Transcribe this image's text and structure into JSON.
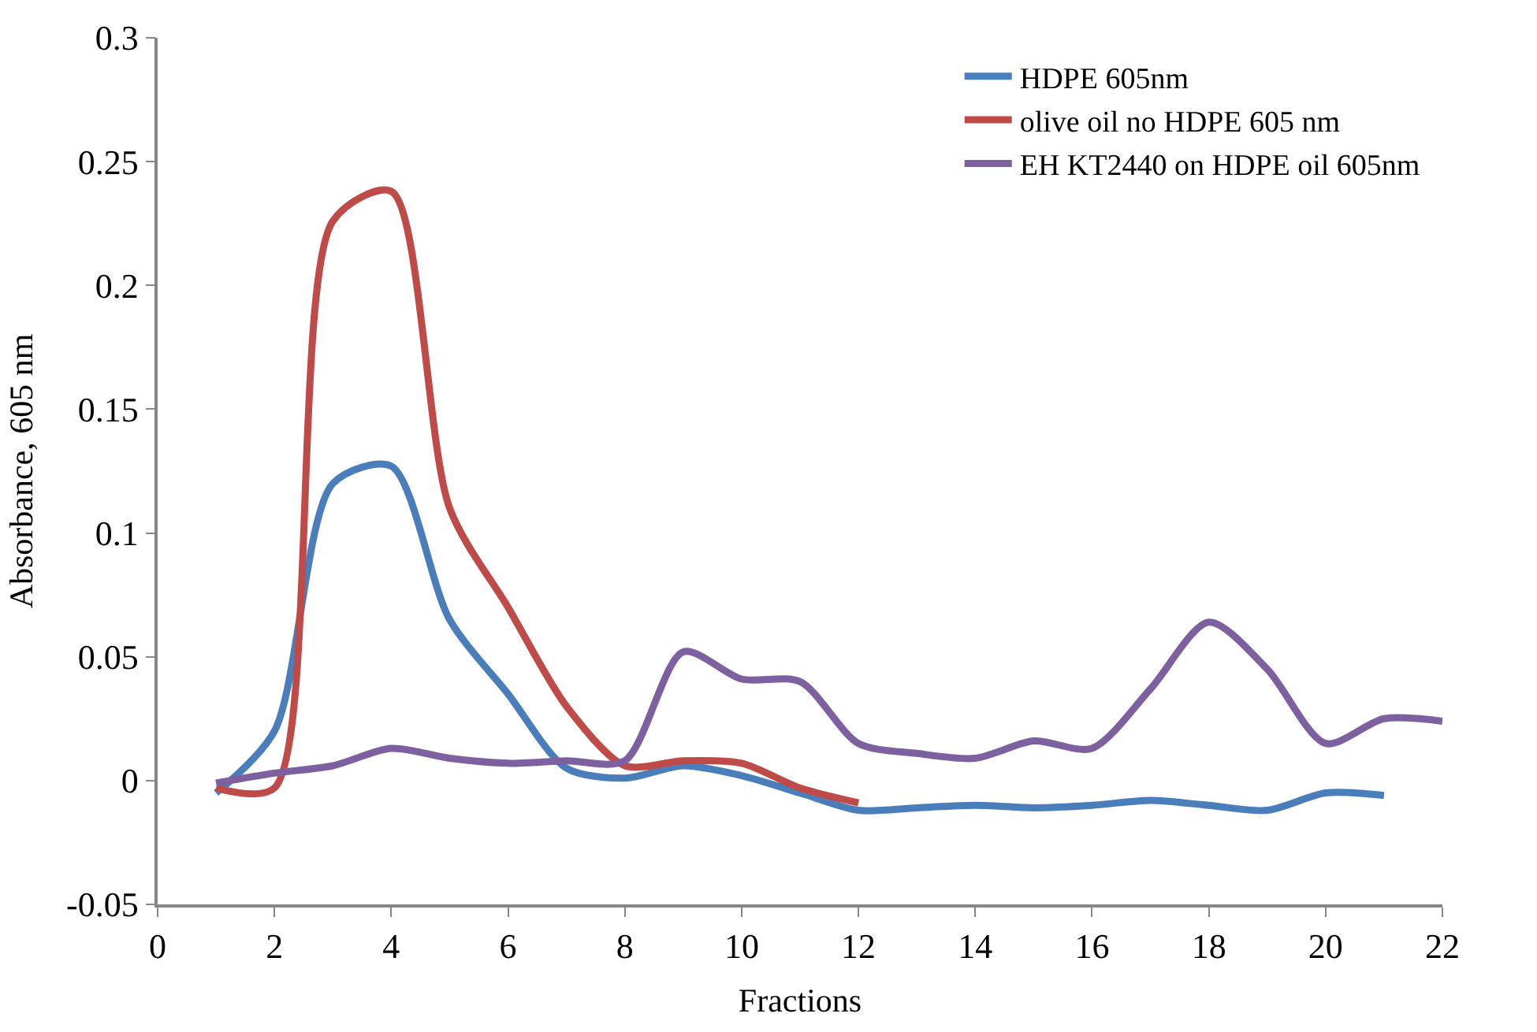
{
  "chart_data": {
    "type": "line",
    "xlabel": "Fractions",
    "ylabel": "Absorbance, 605 nm",
    "xlim": [
      0,
      22
    ],
    "xticks": [
      0,
      2,
      4,
      6,
      8,
      10,
      12,
      14,
      16,
      18,
      20,
      22
    ],
    "ylim": [
      -0.05,
      0.3
    ],
    "yticks": [
      -0.05,
      0,
      0.05,
      0.1,
      0.15,
      0.2,
      0.25,
      0.3
    ],
    "legend": "top right",
    "marker": "none",
    "line_style": "solid",
    "series": [
      {
        "name": "HDPE 605nm",
        "color": "#4a7ebb",
        "x": [
          1,
          2,
          3,
          4,
          5,
          6,
          7,
          8,
          9,
          10,
          11,
          12,
          13,
          14,
          15,
          16,
          17,
          18,
          19,
          20,
          21
        ],
        "values": [
          -0.005,
          0.02,
          0.12,
          0.127,
          0.065,
          0.035,
          0.005,
          0.001,
          0.006,
          0.002,
          -0.005,
          -0.012,
          -0.011,
          -0.01,
          -0.011,
          -0.01,
          -0.008,
          -0.01,
          -0.012,
          -0.005,
          -0.006
        ]
      },
      {
        "name": "olive oil no HDPE 605 nm",
        "color": "#be4b48",
        "x": [
          1,
          2,
          3,
          4,
          5,
          6,
          7,
          8,
          9,
          10,
          11,
          12
        ],
        "values": [
          -0.003,
          -0.003,
          0.226,
          0.238,
          0.11,
          0.07,
          0.03,
          0.006,
          0.008,
          0.007,
          -0.003,
          -0.009
        ]
      },
      {
        "name": "EH KT2440 on HDPE oil 605nm",
        "color": "#7d60a0",
        "x": [
          1,
          2,
          3,
          4,
          5,
          6,
          7,
          8,
          9,
          10,
          11,
          12,
          13,
          14,
          15,
          16,
          17,
          18,
          19,
          20,
          21,
          22
        ],
        "values": [
          -0.001,
          0.003,
          0.006,
          0.013,
          0.009,
          0.007,
          0.008,
          0.008,
          0.052,
          0.041,
          0.04,
          0.015,
          0.011,
          0.009,
          0.016,
          0.013,
          0.037,
          0.064,
          0.045,
          0.015,
          0.025,
          0.024
        ]
      }
    ]
  }
}
